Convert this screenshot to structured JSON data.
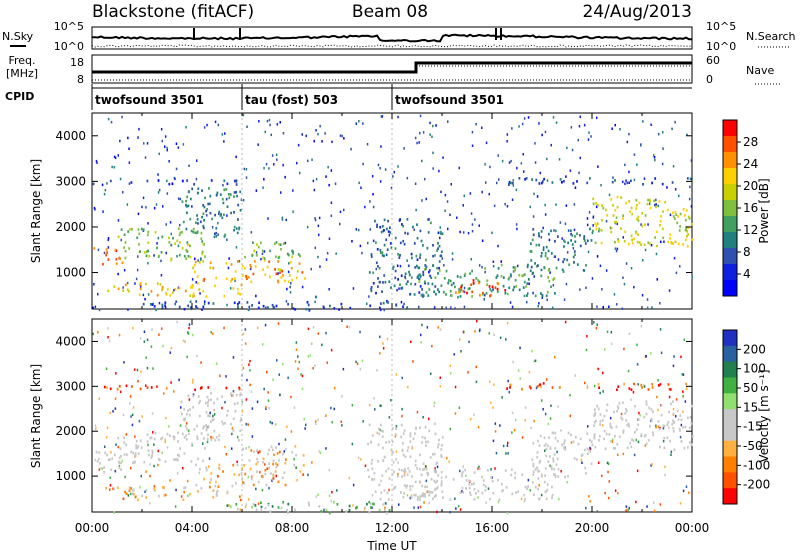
{
  "header": {
    "radar_title": "Blackstone (fitACF)",
    "beam": "Beam 08",
    "date": "24/Aug/2013"
  },
  "panels": {
    "nsky_label": "N.Sky",
    "nsearch_label": "N.Search",
    "noise_ticks": [
      "10^5",
      "10^0"
    ],
    "freq_label": "Freq.",
    "freq_unit": "[MHz]",
    "freq_ticks": [
      "18",
      "8"
    ],
    "nave_label": "Nave",
    "nave_ticks": [
      "60",
      "0"
    ],
    "cpid_label": "CPID",
    "cpid_segments": [
      {
        "label": "twofsound 3501",
        "start_hour": 0
      },
      {
        "label": "tau (fost) 503",
        "start_hour": 6
      },
      {
        "label": "twofsound 3501",
        "start_hour": 12
      }
    ]
  },
  "power_colorbar": {
    "title": "Power [dB]",
    "ticks": [
      "28",
      "24",
      "20",
      "16",
      "12",
      "8",
      "4"
    ],
    "colors": [
      "#ff0000",
      "#ff5000",
      "#ff9000",
      "#ffd000",
      "#c8d000",
      "#80c040",
      "#40a060",
      "#208080",
      "#3050b0",
      "#1020e0",
      "#0000ff"
    ]
  },
  "velocity_colorbar": {
    "title": "Velocity [m s⁻¹]",
    "ticks": [
      "200",
      "100",
      "50",
      "15",
      "-15",
      "-50",
      "-100",
      "-200"
    ],
    "colors": [
      "#2030c0",
      "#2860a0",
      "#208050",
      "#40b040",
      "#90e070",
      "#c8c8c8",
      "#c8c8c8",
      "#ffb040",
      "#ff8000",
      "#ff5000",
      "#ff0000"
    ]
  },
  "axes": {
    "ylabel": "Slant Range [km]",
    "yticks": [
      "4000",
      "3000",
      "2000",
      "1000"
    ],
    "xlabel": "Time UT",
    "xticks": [
      "00:00",
      "04:00",
      "08:00",
      "12:00",
      "16:00",
      "20:00",
      "00:00"
    ]
  },
  "chart_data": [
    {
      "type": "heatmap",
      "title": "Power [dB]",
      "xlabel": "Time UT",
      "ylabel": "Slant Range [km]",
      "xlim": [
        0,
        24
      ],
      "ylim": [
        200,
        4500
      ],
      "color_range": [
        0,
        30
      ],
      "echo_regions": [
        {
          "t0": 0.0,
          "t1": 1.2,
          "r0": 1200,
          "r1": 1600,
          "value": 26
        },
        {
          "t0": 1.0,
          "t1": 4.5,
          "r0": 1300,
          "r1": 2000,
          "value": 14
        },
        {
          "t0": 3.5,
          "t1": 6.0,
          "r0": 1800,
          "r1": 2900,
          "value": 10
        },
        {
          "t0": 0.0,
          "t1": 6.0,
          "r0": 2950,
          "r1": 3050,
          "value": 6
        },
        {
          "t0": 0.5,
          "t1": 6.0,
          "r0": 500,
          "r1": 800,
          "value": 20
        },
        {
          "t0": 4.0,
          "t1": 8.5,
          "r0": 800,
          "r1": 1300,
          "value": 22
        },
        {
          "t0": 6.0,
          "t1": 8.5,
          "r0": 1300,
          "r1": 1700,
          "value": 14
        },
        {
          "t0": 2.0,
          "t1": 13.0,
          "r0": 200,
          "r1": 400,
          "value": 6
        },
        {
          "t0": 11.0,
          "t1": 14.0,
          "r0": 500,
          "r1": 2200,
          "value": 8
        },
        {
          "t0": 13.0,
          "t1": 18.5,
          "r0": 500,
          "r1": 1200,
          "value": 12
        },
        {
          "t0": 14.5,
          "t1": 16.5,
          "r0": 500,
          "r1": 900,
          "value": 26
        },
        {
          "t0": 17.5,
          "t1": 20.0,
          "r0": 1000,
          "r1": 2000,
          "value": 10
        },
        {
          "t0": 20.0,
          "t1": 24.0,
          "r0": 1600,
          "r1": 2700,
          "value": 18
        },
        {
          "t0": 16.5,
          "t1": 24.0,
          "r0": 2950,
          "r1": 3100,
          "value": 6
        }
      ]
    },
    {
      "type": "heatmap",
      "title": "Velocity [m s⁻¹]",
      "xlabel": "Time UT",
      "ylabel": "Slant Range [km]",
      "xlim": [
        0,
        24
      ],
      "ylim": [
        200,
        4500
      ],
      "color_range": [
        -200,
        200
      ],
      "echo_regions": [
        {
          "t0": 0.0,
          "t1": 1.2,
          "r0": 1100,
          "r1": 1600,
          "value": 0
        },
        {
          "t0": 1.0,
          "t1": 4.5,
          "r0": 1300,
          "r1": 2000,
          "value": 0
        },
        {
          "t0": 3.5,
          "t1": 6.0,
          "r0": 1800,
          "r1": 2900,
          "value": 0
        },
        {
          "t0": 0.0,
          "t1": 6.0,
          "r0": 2950,
          "r1": 3050,
          "value": -150
        },
        {
          "t0": 0.5,
          "t1": 6.0,
          "r0": 500,
          "r1": 800,
          "value": -60
        },
        {
          "t0": 4.0,
          "t1": 8.5,
          "r0": 800,
          "r1": 1300,
          "value": -70
        },
        {
          "t0": 6.0,
          "t1": 8.5,
          "r0": 1300,
          "r1": 1700,
          "value": -60
        },
        {
          "t0": 5.0,
          "t1": 12.0,
          "r0": 200,
          "r1": 450,
          "value": 40
        },
        {
          "t0": 11.0,
          "t1": 14.0,
          "r0": 500,
          "r1": 2200,
          "value": 0
        },
        {
          "t0": 13.0,
          "t1": 18.5,
          "r0": 500,
          "r1": 1200,
          "value": 0
        },
        {
          "t0": 17.5,
          "t1": 20.0,
          "r0": 1000,
          "r1": 2000,
          "value": 0
        },
        {
          "t0": 20.0,
          "t1": 24.0,
          "r0": 1600,
          "r1": 2700,
          "value": 0
        },
        {
          "t0": 16.5,
          "t1": 24.0,
          "r0": 2950,
          "r1": 3100,
          "value": -150
        }
      ]
    }
  ]
}
